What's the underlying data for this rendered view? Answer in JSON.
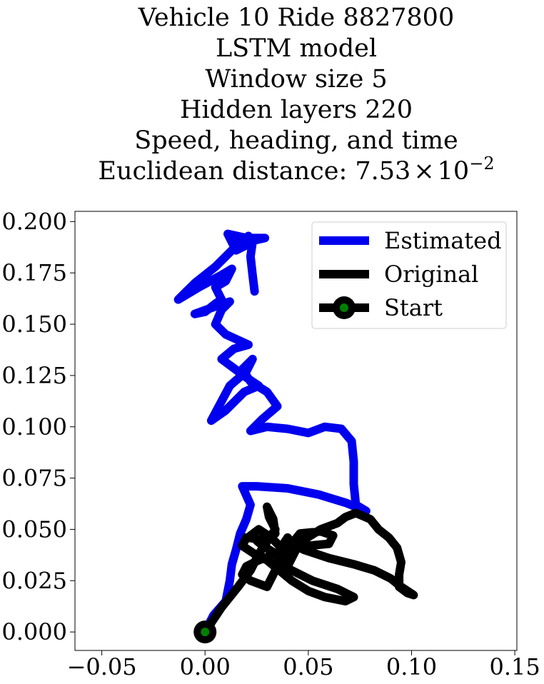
{
  "chart_data": {
    "type": "line",
    "title_lines": [
      "Vehicle 10 Ride 8827800",
      "LSTM model",
      "Window size 5",
      "Hidden layers 220",
      "Speed, heading, and time"
    ],
    "title_distance_prefix": "Euclidean distance: ",
    "title_distance_mantissa": "7.53",
    "title_distance_times": "×",
    "title_distance_base": "10",
    "title_distance_exponent": "−2",
    "xlabel": "",
    "ylabel": "",
    "xlim": [
      -0.063,
      0.151
    ],
    "ylim": [
      -0.009,
      0.205
    ],
    "xticks": [
      -0.05,
      0.0,
      0.05,
      0.1,
      0.15
    ],
    "xtick_labels": [
      "−0.05",
      "0.00",
      "0.05",
      "0.10",
      "0.15"
    ],
    "yticks": [
      0.0,
      0.025,
      0.05,
      0.075,
      0.1,
      0.125,
      0.15,
      0.175,
      0.2
    ],
    "ytick_labels": [
      "0.000",
      "0.025",
      "0.050",
      "0.075",
      "0.100",
      "0.125",
      "0.150",
      "0.175",
      "0.200"
    ],
    "grid": false,
    "legend_position": "top-right",
    "series": [
      {
        "name": "Estimated",
        "color": "#0000ee",
        "points": [
          [
            0.0,
            0.0
          ],
          [
            0.004,
            0.008
          ],
          [
            0.01,
            0.015
          ],
          [
            0.012,
            0.025
          ],
          [
            0.013,
            0.033
          ],
          [
            0.015,
            0.04
          ],
          [
            0.017,
            0.048
          ],
          [
            0.02,
            0.055
          ],
          [
            0.022,
            0.062
          ],
          [
            0.018,
            0.071
          ],
          [
            0.025,
            0.071
          ],
          [
            0.04,
            0.07
          ],
          [
            0.055,
            0.067
          ],
          [
            0.068,
            0.063
          ],
          [
            0.078,
            0.059
          ],
          [
            0.073,
            0.062
          ],
          [
            0.072,
            0.072
          ],
          [
            0.072,
            0.083
          ],
          [
            0.071,
            0.093
          ],
          [
            0.066,
            0.099
          ],
          [
            0.058,
            0.1
          ],
          [
            0.05,
            0.097
          ],
          [
            0.04,
            0.099
          ],
          [
            0.03,
            0.1
          ],
          [
            0.022,
            0.098
          ],
          [
            0.028,
            0.104
          ],
          [
            0.035,
            0.11
          ],
          [
            0.03,
            0.117
          ],
          [
            0.022,
            0.122
          ],
          [
            0.018,
            0.128
          ],
          [
            0.023,
            0.133
          ],
          [
            0.02,
            0.127
          ],
          [
            0.012,
            0.12
          ],
          [
            0.003,
            0.103
          ],
          [
            0.01,
            0.108
          ],
          [
            0.019,
            0.117
          ],
          [
            0.026,
            0.12
          ],
          [
            0.02,
            0.124
          ],
          [
            0.012,
            0.13
          ],
          [
            0.008,
            0.133
          ],
          [
            0.014,
            0.138
          ],
          [
            0.021,
            0.14
          ],
          [
            0.01,
            0.145
          ],
          [
            0.005,
            0.15
          ],
          [
            0.008,
            0.157
          ],
          [
            0.012,
            0.161
          ],
          [
            0.006,
            0.159
          ],
          [
            -0.005,
            0.155
          ],
          [
            0.0,
            0.156
          ],
          [
            0.005,
            0.16
          ],
          [
            0.008,
            0.162
          ],
          [
            0.005,
            0.168
          ],
          [
            0.01,
            0.171
          ],
          [
            0.013,
            0.177
          ],
          [
            0.008,
            0.174
          ],
          [
            -0.003,
            0.168
          ],
          [
            -0.013,
            0.162
          ],
          [
            -0.005,
            0.17
          ],
          [
            0.005,
            0.178
          ],
          [
            0.013,
            0.186
          ],
          [
            0.021,
            0.193
          ],
          [
            0.014,
            0.188
          ],
          [
            0.011,
            0.194
          ],
          [
            0.02,
            0.192
          ],
          [
            0.029,
            0.192
          ],
          [
            0.02,
            0.19
          ],
          [
            0.015,
            0.186
          ],
          [
            0.023,
            0.19
          ],
          [
            0.022,
            0.183
          ],
          [
            0.023,
            0.174
          ],
          [
            0.024,
            0.166
          ]
        ]
      },
      {
        "name": "Original",
        "color": "#000000",
        "points": [
          [
            0.0,
            0.0
          ],
          [
            0.008,
            0.012
          ],
          [
            0.016,
            0.022
          ],
          [
            0.022,
            0.03
          ],
          [
            0.026,
            0.038
          ],
          [
            0.03,
            0.044
          ],
          [
            0.034,
            0.05
          ],
          [
            0.031,
            0.056
          ],
          [
            0.03,
            0.061
          ],
          [
            0.033,
            0.055
          ],
          [
            0.034,
            0.048
          ],
          [
            0.028,
            0.045
          ],
          [
            0.02,
            0.046
          ],
          [
            0.018,
            0.042
          ],
          [
            0.024,
            0.038
          ],
          [
            0.03,
            0.035
          ],
          [
            0.036,
            0.03
          ],
          [
            0.042,
            0.025
          ],
          [
            0.05,
            0.02
          ],
          [
            0.058,
            0.017
          ],
          [
            0.068,
            0.015
          ],
          [
            0.072,
            0.017
          ],
          [
            0.064,
            0.021
          ],
          [
            0.052,
            0.025
          ],
          [
            0.042,
            0.03
          ],
          [
            0.036,
            0.033
          ],
          [
            0.04,
            0.038
          ],
          [
            0.048,
            0.045
          ],
          [
            0.056,
            0.05
          ],
          [
            0.064,
            0.053
          ],
          [
            0.068,
            0.056
          ],
          [
            0.073,
            0.058
          ],
          [
            0.08,
            0.055
          ],
          [
            0.084,
            0.05
          ],
          [
            0.089,
            0.046
          ],
          [
            0.093,
            0.041
          ],
          [
            0.095,
            0.034
          ],
          [
            0.094,
            0.028
          ],
          [
            0.094,
            0.022
          ],
          [
            0.098,
            0.019
          ],
          [
            0.101,
            0.018
          ],
          [
            0.095,
            0.022
          ],
          [
            0.09,
            0.026
          ],
          [
            0.082,
            0.03
          ],
          [
            0.072,
            0.033
          ],
          [
            0.06,
            0.036
          ],
          [
            0.048,
            0.04
          ],
          [
            0.042,
            0.043
          ],
          [
            0.046,
            0.048
          ],
          [
            0.056,
            0.049
          ],
          [
            0.062,
            0.047
          ],
          [
            0.06,
            0.043
          ],
          [
            0.05,
            0.042
          ],
          [
            0.042,
            0.041
          ],
          [
            0.034,
            0.038
          ],
          [
            0.026,
            0.035
          ],
          [
            0.02,
            0.032
          ],
          [
            0.018,
            0.028
          ],
          [
            0.022,
            0.025
          ],
          [
            0.03,
            0.022
          ],
          [
            0.034,
            0.03
          ],
          [
            0.036,
            0.04
          ],
          [
            0.04,
            0.046
          ],
          [
            0.044,
            0.04
          ],
          [
            0.04,
            0.032
          ],
          [
            0.038,
            0.04
          ],
          [
            0.032,
            0.046
          ],
          [
            0.026,
            0.05
          ],
          [
            0.022,
            0.047
          ],
          [
            0.028,
            0.042
          ],
          [
            0.036,
            0.037
          ],
          [
            0.04,
            0.033
          ],
          [
            0.042,
            0.038
          ]
        ]
      }
    ],
    "start_marker": {
      "name": "Start",
      "x": 0.0,
      "y": 0.0,
      "outer_color": "#000000",
      "inner_color": "#008000"
    },
    "legend": [
      {
        "label": "Estimated",
        "color": "#0000ee",
        "marker": "line"
      },
      {
        "label": "Original",
        "color": "#000000",
        "marker": "line"
      },
      {
        "label": "Start",
        "color": "#000000",
        "marker": "line-with-green-dot"
      }
    ]
  }
}
